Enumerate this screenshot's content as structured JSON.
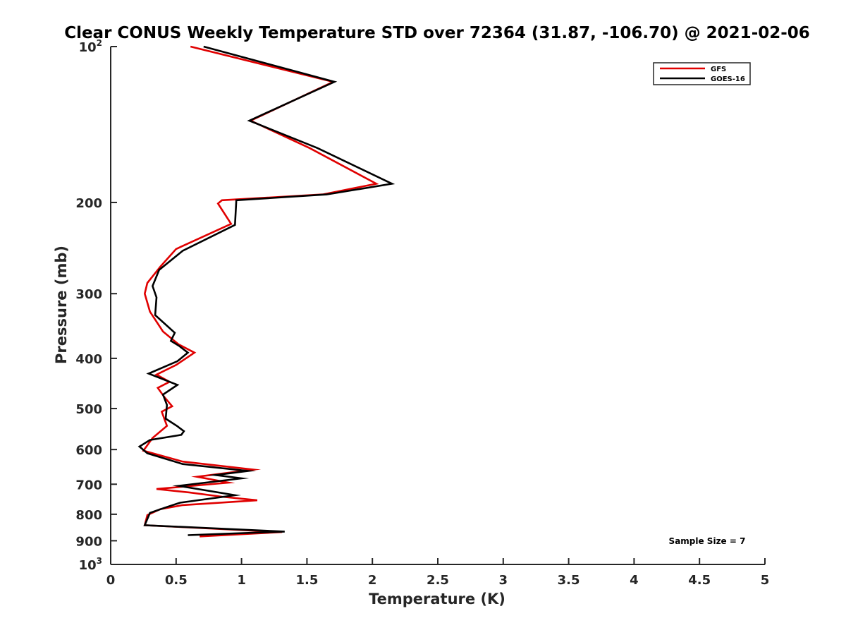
{
  "chart_data": {
    "type": "line",
    "title": "Clear CONUS Weekly Temperature STD over 72364 (31.87, -106.70) @ 2021-02-06",
    "xlabel": "Temperature (K)",
    "ylabel": "Pressure (mb)",
    "xlim": [
      0,
      5
    ],
    "ylim": [
      100,
      1000
    ],
    "y_scale": "log",
    "y_reversed": true,
    "grid": false,
    "legend_position": "top-right",
    "x_ticks": [
      "0",
      "0.5",
      "1",
      "1.5",
      "2",
      "2.5",
      "3",
      "3.5",
      "4",
      "4.5",
      "5"
    ],
    "x_tick_values": [
      0,
      0.5,
      1,
      1.5,
      2,
      2.5,
      3,
      3.5,
      4,
      4.5,
      5
    ],
    "y_tick_values": [
      100,
      200,
      300,
      400,
      500,
      600,
      700,
      800,
      900,
      1000
    ],
    "y_ticks": [
      {
        "value": 100,
        "base": "10",
        "exp": "2"
      },
      {
        "value": 200,
        "base": "200",
        "exp": ""
      },
      {
        "value": 300,
        "base": "300",
        "exp": ""
      },
      {
        "value": 400,
        "base": "400",
        "exp": ""
      },
      {
        "value": 500,
        "base": "500",
        "exp": ""
      },
      {
        "value": 600,
        "base": "600",
        "exp": ""
      },
      {
        "value": 700,
        "base": "700",
        "exp": ""
      },
      {
        "value": 800,
        "base": "800",
        "exp": ""
      },
      {
        "value": 900,
        "base": "900",
        "exp": ""
      },
      {
        "value": 1000,
        "base": "10",
        "exp": "3"
      }
    ],
    "annotation": "Sample Size = 7",
    "series": [
      {
        "name": "GFS",
        "color": "#e00000",
        "points": [
          [
            0.61,
            100
          ],
          [
            1.7,
            117
          ],
          [
            1.07,
            139
          ],
          [
            1.52,
            157
          ],
          [
            2.03,
            184
          ],
          [
            1.62,
            193
          ],
          [
            0.85,
            198
          ],
          [
            0.82,
            201
          ],
          [
            0.92,
            220
          ],
          [
            0.5,
            246
          ],
          [
            0.38,
            266
          ],
          [
            0.28,
            286
          ],
          [
            0.26,
            300
          ],
          [
            0.3,
            325
          ],
          [
            0.4,
            355
          ],
          [
            0.52,
            376
          ],
          [
            0.64,
            390
          ],
          [
            0.5,
            412
          ],
          [
            0.35,
            430
          ],
          [
            0.45,
            444
          ],
          [
            0.36,
            456
          ],
          [
            0.41,
            475
          ],
          [
            0.47,
            495
          ],
          [
            0.39,
            507
          ],
          [
            0.43,
            540
          ],
          [
            0.32,
            570
          ],
          [
            0.25,
            603
          ],
          [
            0.55,
            633
          ],
          [
            1.09,
            656
          ],
          [
            0.66,
            677
          ],
          [
            0.9,
            695
          ],
          [
            0.35,
            715
          ],
          [
            0.6,
            726
          ],
          [
            0.85,
            740
          ],
          [
            1.12,
            752
          ],
          [
            0.55,
            768
          ],
          [
            0.38,
            782
          ],
          [
            0.28,
            803
          ],
          [
            0.26,
            840
          ],
          [
            1.31,
            866
          ],
          [
            0.68,
            883
          ]
        ]
      },
      {
        "name": "GOES-16",
        "color": "#000000",
        "points": [
          [
            0.71,
            100
          ],
          [
            1.71,
            117
          ],
          [
            1.06,
            139
          ],
          [
            1.58,
            157
          ],
          [
            2.15,
            184
          ],
          [
            1.65,
            193
          ],
          [
            0.96,
            198
          ],
          [
            0.95,
            221
          ],
          [
            0.55,
            248
          ],
          [
            0.37,
            270
          ],
          [
            0.32,
            290
          ],
          [
            0.35,
            305
          ],
          [
            0.34,
            330
          ],
          [
            0.49,
            357
          ],
          [
            0.46,
            370
          ],
          [
            0.52,
            378
          ],
          [
            0.59,
            390
          ],
          [
            0.51,
            405
          ],
          [
            0.29,
            428
          ],
          [
            0.51,
            450
          ],
          [
            0.4,
            470
          ],
          [
            0.43,
            492
          ],
          [
            0.42,
            523
          ],
          [
            0.51,
            541
          ],
          [
            0.56,
            553
          ],
          [
            0.54,
            562
          ],
          [
            0.3,
            575
          ],
          [
            0.22,
            592
          ],
          [
            0.28,
            610
          ],
          [
            0.55,
            640
          ],
          [
            1.05,
            660
          ],
          [
            0.8,
            672
          ],
          [
            1.0,
            682
          ],
          [
            0.52,
            705
          ],
          [
            0.95,
            735
          ],
          [
            0.53,
            760
          ],
          [
            0.42,
            776
          ],
          [
            0.3,
            795
          ],
          [
            0.26,
            840
          ],
          [
            1.33,
            864
          ],
          [
            0.59,
            878
          ]
        ]
      }
    ]
  }
}
